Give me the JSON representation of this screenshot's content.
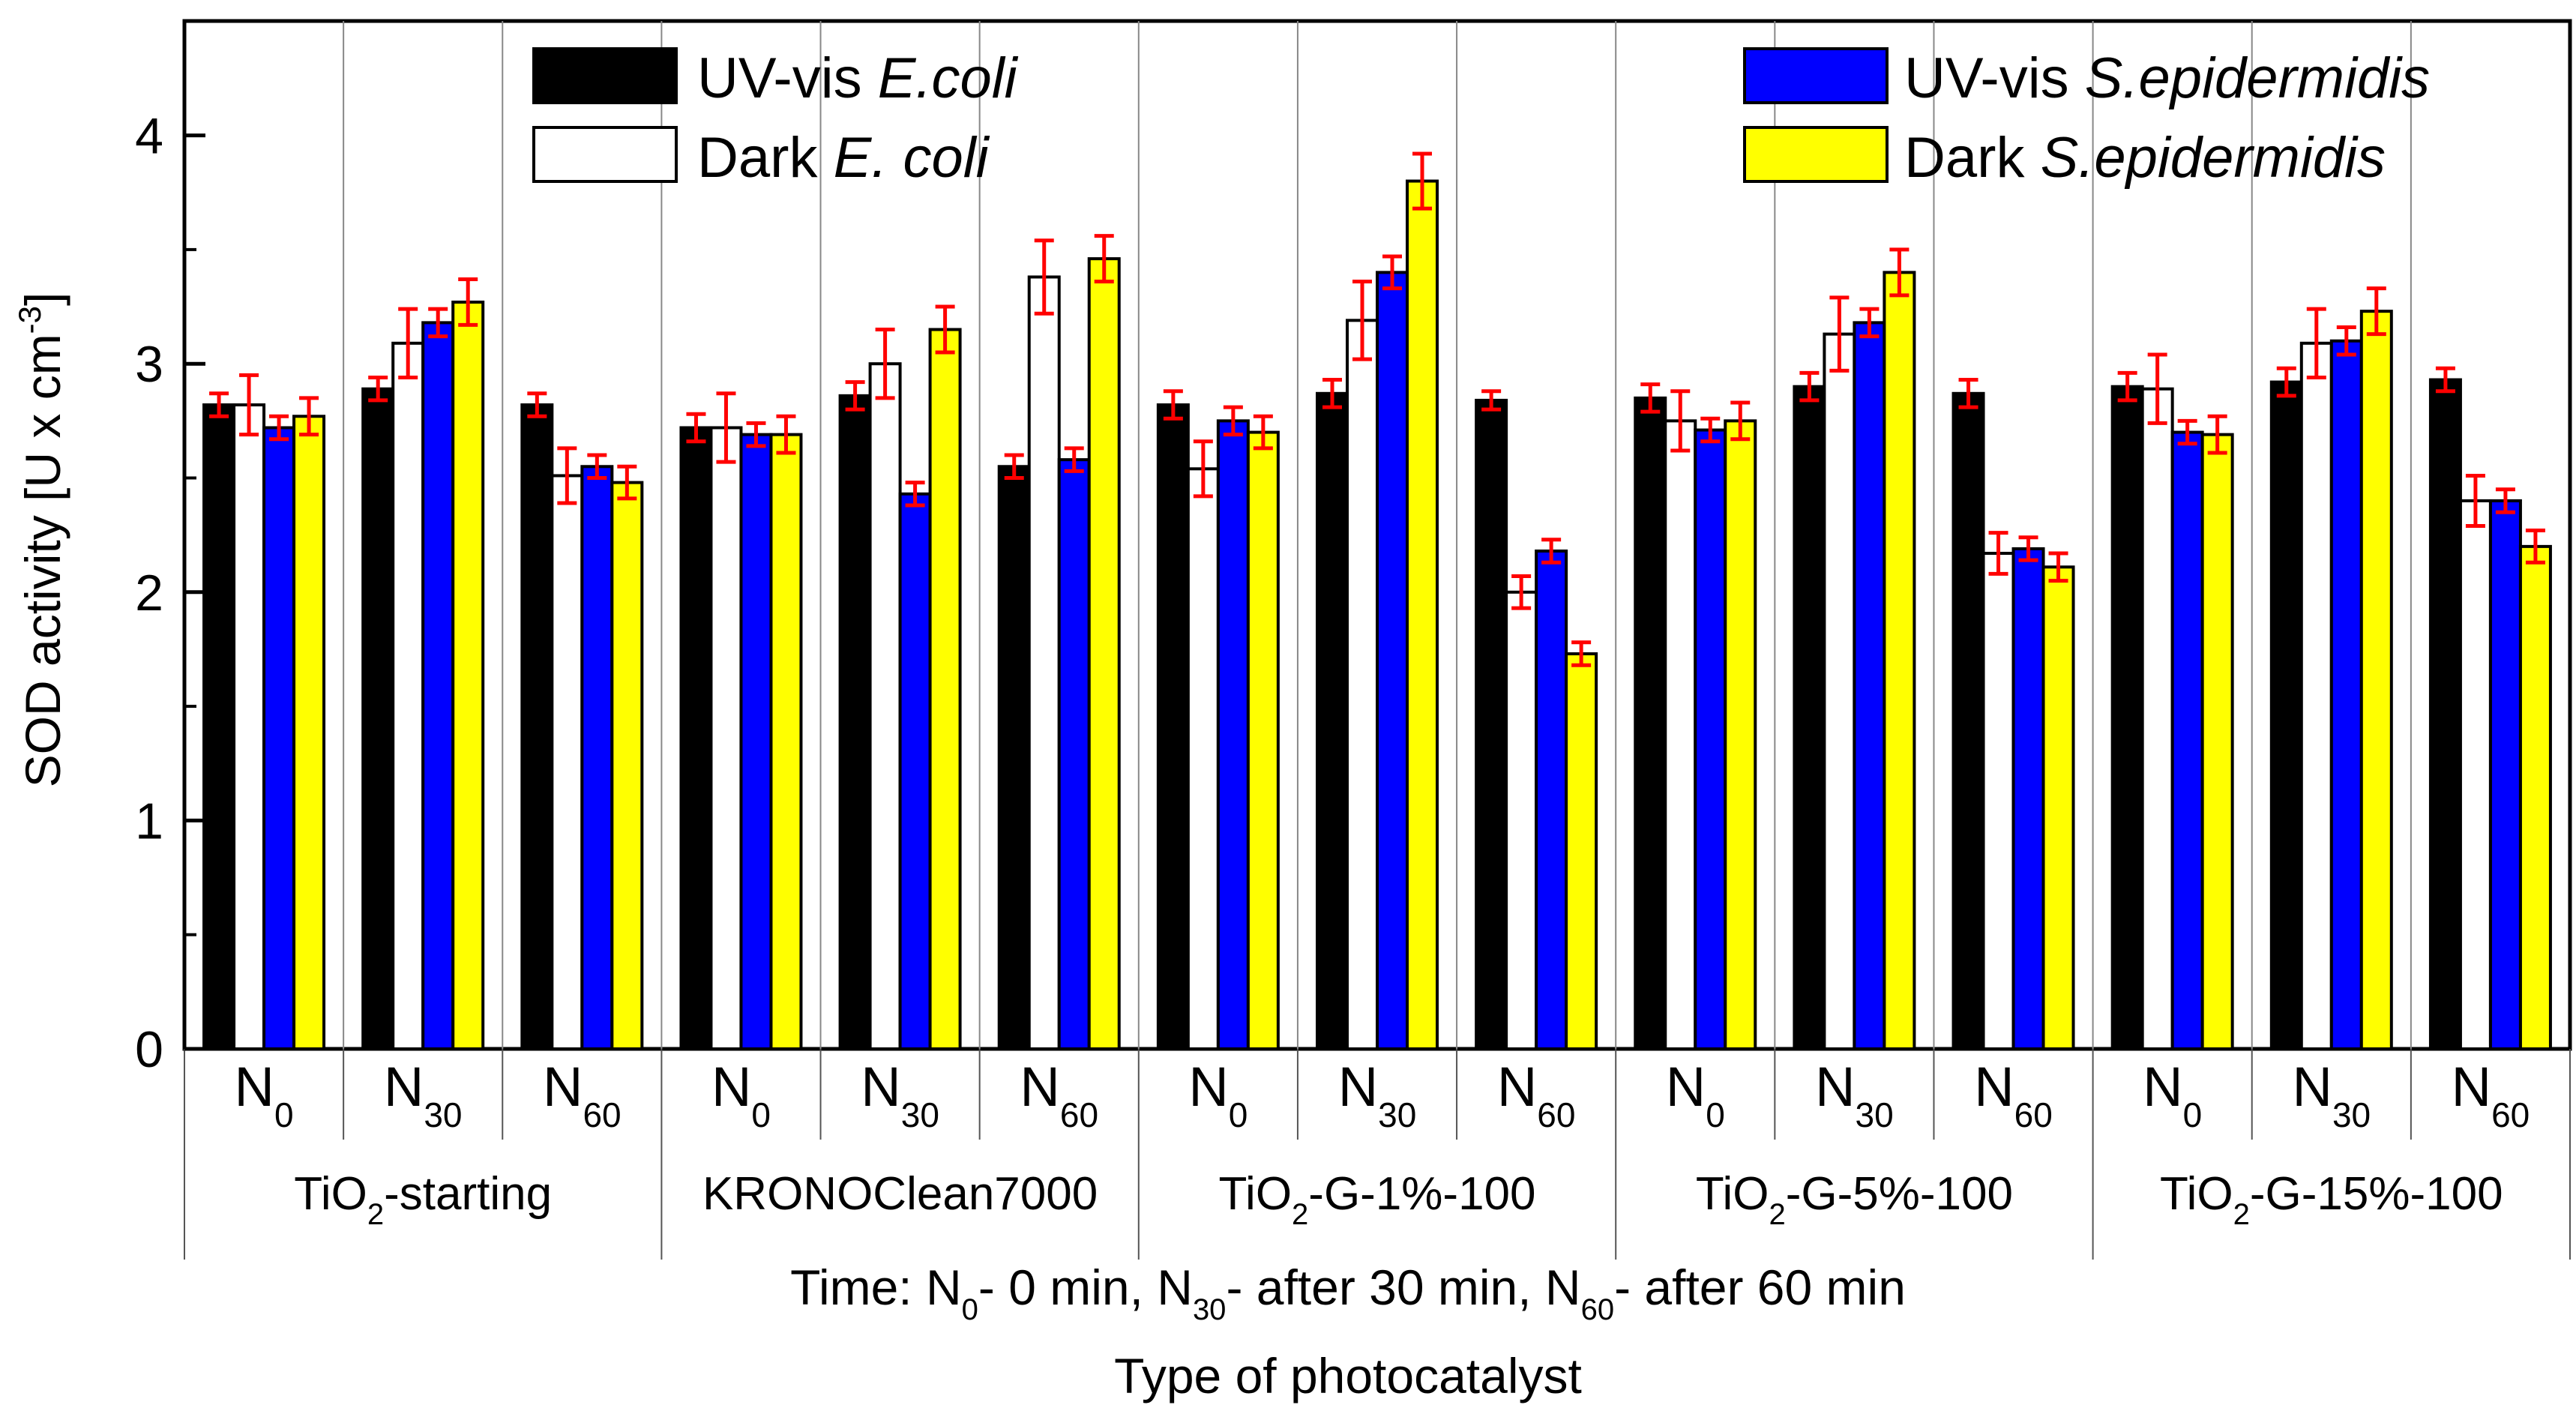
{
  "chart_data": {
    "type": "bar",
    "title": "",
    "ylabel_main": "SOD activity [U x cm",
    "ylabel_sup": "-3",
    "ylabel_end": "]",
    "xlabel": "Type of photocatalyst",
    "ylim": [
      0,
      4.5
    ],
    "yticks": [
      "0",
      "1",
      "2",
      "3",
      "4"
    ],
    "grid": false,
    "time_note": {
      "prefix": "Time: N",
      "s1": "0",
      "t1": "- 0 min, N",
      "s2": "30",
      "t2": "- after 30 min, N",
      "s3": "60",
      "t3": "- after 60 min"
    },
    "groups": [
      {
        "name": "TiO2-starting",
        "label_pre": "TiO",
        "label_sub": "2",
        "label_post": "-starting"
      },
      {
        "name": "KRONOClean7000",
        "label_pre": "KRONOClean7000",
        "label_sub": "",
        "label_post": ""
      },
      {
        "name": "TiO2-G-1%-100",
        "label_pre": "TiO",
        "label_sub": "2",
        "label_post": "-G-1%-100"
      },
      {
        "name": "TiO2-G-5%-100",
        "label_pre": "TiO",
        "label_sub": "2",
        "label_post": "-G-5%-100"
      },
      {
        "name": "TiO2-G-15%-100",
        "label_pre": "TiO",
        "label_sub": "2",
        "label_post": "-G-15%-100"
      }
    ],
    "times": [
      {
        "main": "N",
        "sub": "0"
      },
      {
        "main": "N",
        "sub": "30"
      },
      {
        "main": "N",
        "sub": "60"
      }
    ],
    "series": [
      {
        "name": "UV-vis E.coli",
        "legend_main": "UV-vis ",
        "legend_italic": "E.coli",
        "fill": "#000000",
        "values": [
          2.82,
          2.89,
          2.82,
          2.72,
          2.86,
          2.55,
          2.82,
          2.87,
          2.84,
          2.85,
          2.9,
          2.87,
          2.9,
          2.92,
          2.93
        ],
        "errors": [
          0.05,
          0.05,
          0.05,
          0.06,
          0.06,
          0.05,
          0.06,
          0.06,
          0.04,
          0.06,
          0.06,
          0.06,
          0.06,
          0.06,
          0.05
        ]
      },
      {
        "name": "Dark E. coli",
        "legend_main": "Dark ",
        "legend_italic": "E. coli",
        "fill": "#ffffff",
        "values": [
          2.82,
          3.09,
          2.51,
          2.72,
          3.0,
          3.38,
          2.54,
          3.19,
          2.0,
          2.75,
          3.13,
          2.17,
          2.89,
          3.09,
          2.4
        ],
        "errors": [
          0.13,
          0.15,
          0.12,
          0.15,
          0.15,
          0.16,
          0.12,
          0.17,
          0.07,
          0.13,
          0.16,
          0.09,
          0.15,
          0.15,
          0.11
        ]
      },
      {
        "name": "UV-vis S.epidermidis",
        "legend_main": "UV-vis ",
        "legend_italic": "S.epidermidis",
        "fill": "#0000ff",
        "values": [
          2.72,
          3.18,
          2.55,
          2.69,
          2.43,
          2.58,
          2.75,
          3.4,
          2.18,
          2.71,
          3.18,
          2.19,
          2.7,
          3.1,
          2.4
        ],
        "errors": [
          0.05,
          0.06,
          0.05,
          0.05,
          0.05,
          0.05,
          0.06,
          0.07,
          0.05,
          0.05,
          0.06,
          0.05,
          0.05,
          0.06,
          0.05
        ]
      },
      {
        "name": "Dark S.epidermidis",
        "legend_main": "Dark ",
        "legend_italic": "S.epidermidis",
        "fill": "#ffff00",
        "values": [
          2.77,
          3.27,
          2.48,
          2.69,
          3.15,
          3.46,
          2.7,
          3.8,
          1.73,
          2.75,
          3.4,
          2.11,
          2.69,
          3.23,
          2.2
        ],
        "errors": [
          0.08,
          0.1,
          0.07,
          0.08,
          0.1,
          0.1,
          0.07,
          0.12,
          0.05,
          0.08,
          0.1,
          0.06,
          0.08,
          0.1,
          0.07
        ]
      }
    ],
    "colors": {
      "error_bar": "#ff0000",
      "axis": "#000000",
      "bar_outline": "#000000"
    }
  }
}
